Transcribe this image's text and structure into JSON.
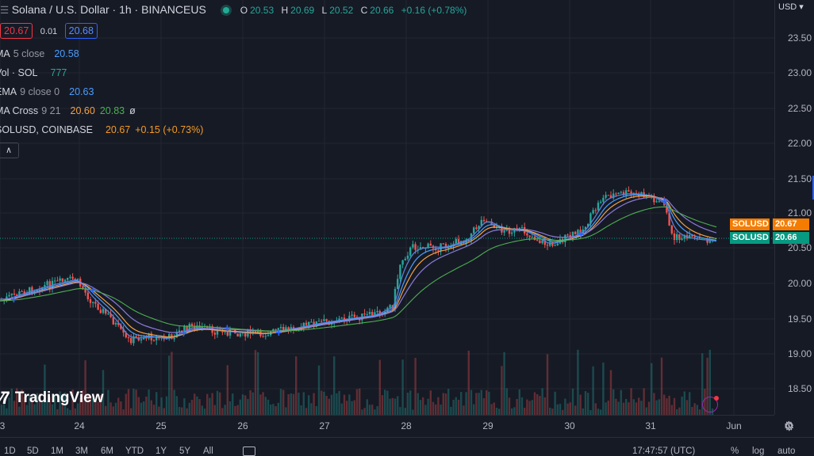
{
  "header": {
    "symbol_title": "Solana / U.S. Dollar · 1h · BINANCEUS",
    "ohlc": {
      "o_label": "O",
      "o": "20.53",
      "h_label": "H",
      "h": "20.69",
      "l_label": "L",
      "l": "20.52",
      "c_label": "C",
      "c": "20.66",
      "change": "+0.16 (+0.78%)"
    },
    "sell_price": "20.67",
    "spread": "0.01",
    "buy_price": "20.68"
  },
  "indicators": [
    {
      "name": "MA",
      "params": "5 close",
      "values": [
        {
          "v": "20.58",
          "color": "#4a9eff"
        }
      ]
    },
    {
      "name": "Vol · SOL",
      "params": "",
      "values": [
        {
          "v": "777",
          "color": "#26a69a"
        }
      ]
    },
    {
      "name": "EMA",
      "params": "9 close 0",
      "values": [
        {
          "v": "20.63",
          "color": "#4a9eff"
        }
      ]
    },
    {
      "name": "MA Cross",
      "params": "9 21",
      "values": [
        {
          "v": "20.60",
          "color": "#f5a142"
        },
        {
          "v": "20.83",
          "color": "#4caf50"
        },
        {
          "v": "ø",
          "color": "#d1d4dc"
        }
      ]
    },
    {
      "name": "SOLUSD, COINBASE",
      "params": "",
      "values": [
        {
          "v": "20.67",
          "color": "#f59a23"
        },
        {
          "v": "+0.15 (+0.73%)",
          "color": "#f59a23"
        }
      ]
    }
  ],
  "price_scale": {
    "currency": "USD",
    "ticks": [
      "23.50",
      "23.00",
      "22.50",
      "22.00",
      "21.50",
      "21.00",
      "20.50",
      "20.00",
      "19.50",
      "19.00",
      "18.50"
    ],
    "tags": [
      {
        "label": "SOLUSD",
        "value": "20.67",
        "color": "#f57c00"
      },
      {
        "label": "SOLUSD",
        "value": "20.66",
        "color": "#089981"
      }
    ]
  },
  "time_scale": {
    "ticks": [
      "3",
      "24",
      "25",
      "26",
      "27",
      "28",
      "29",
      "30",
      "31",
      "Jun"
    ]
  },
  "logo": "TradingView",
  "bottom_bar": {
    "ranges": [
      "1D",
      "5D",
      "1M",
      "3M",
      "6M",
      "YTD",
      "1Y",
      "5Y",
      "All"
    ],
    "clock": "17:47:57 (UTC)",
    "right": [
      "%",
      "log",
      "auto"
    ]
  },
  "colors": {
    "up": "#26a69a",
    "down": "#ef5350",
    "ma_blue": "#4a9eff",
    "ma_orange": "#f5a142",
    "ma_green": "#4caf50"
  }
}
